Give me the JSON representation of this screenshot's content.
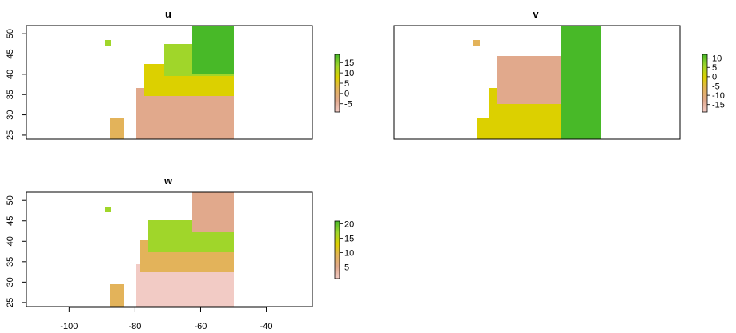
{
  "chart_data": [
    {
      "type": "heatmap",
      "title": "u",
      "x_ticks": [],
      "y_ticks": [
        25,
        30,
        35,
        40,
        45,
        50
      ],
      "xlim": [
        -113,
        -26
      ],
      "ylim": [
        24,
        52
      ],
      "colorbar_ticks": [
        -5,
        0,
        5,
        10,
        15
      ],
      "colorbar_range": [
        -9,
        19
      ],
      "colors": [
        "#f2cbc5",
        "#e1a98c",
        "#e3b35a",
        "#dcd000",
        "#a0d62a",
        "#48b928"
      ]
    },
    {
      "type": "heatmap",
      "title": "v",
      "x_ticks": [],
      "y_ticks": [],
      "xlim": [
        -113,
        -26
      ],
      "ylim": [
        24,
        52
      ],
      "colorbar_ticks": [
        -15,
        -10,
        -5,
        0,
        5,
        10
      ],
      "colorbar_range": [
        -19,
        12
      ],
      "colors": [
        "#f2cbc5",
        "#e1a98c",
        "#e3b35a",
        "#dcd000",
        "#a0d62a",
        "#48b928"
      ]
    },
    {
      "type": "heatmap",
      "title": "w",
      "x_ticks": [
        -100,
        -80,
        -60,
        -40
      ],
      "y_ticks": [
        25,
        30,
        35,
        40,
        45,
        50
      ],
      "xlim": [
        -113,
        -26
      ],
      "ylim": [
        24,
        52
      ],
      "colorbar_ticks": [
        5,
        10,
        15,
        20
      ],
      "colorbar_range": [
        1,
        21
      ],
      "colors": [
        "#f2cbc5",
        "#e1a98c",
        "#e3b35a",
        "#dcd000",
        "#a0d62a",
        "#48b928"
      ]
    }
  ]
}
